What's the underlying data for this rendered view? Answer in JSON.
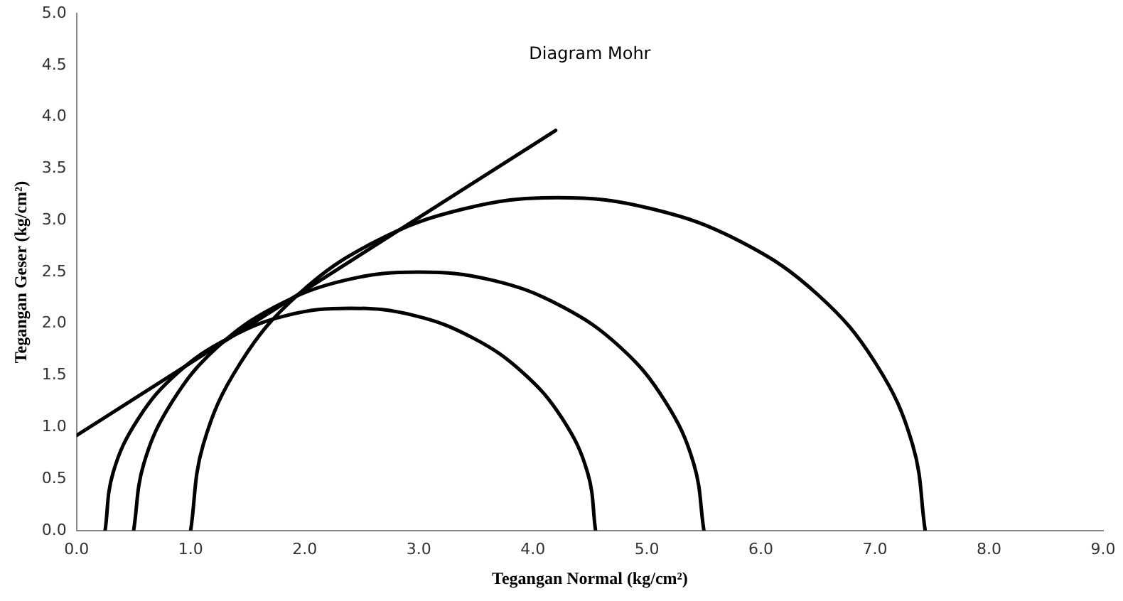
{
  "chart_data": {
    "type": "line",
    "title": "Diagram Mohr",
    "xlabel": "Tegangan Normal (kg/cm²)",
    "ylabel": "Tegangan Geser (kg/cm²)",
    "xlim": [
      0,
      9
    ],
    "ylim": [
      0,
      5
    ],
    "xticks": [
      {
        "value": 0,
        "label": "0.0"
      },
      {
        "value": 1,
        "label": "1.0"
      },
      {
        "value": 2,
        "label": "2.0"
      },
      {
        "value": 3,
        "label": "3.0"
      },
      {
        "value": 4,
        "label": "4.0"
      },
      {
        "value": 5,
        "label": "5.0"
      },
      {
        "value": 6,
        "label": "6.0"
      },
      {
        "value": 7,
        "label": "7.0"
      },
      {
        "value": 8,
        "label": "8.0"
      },
      {
        "value": 9,
        "label": "9.0"
      }
    ],
    "yticks": [
      {
        "value": 0,
        "label": "0.0"
      },
      {
        "value": 0.5,
        "label": "0.5"
      },
      {
        "value": 1,
        "label": "1.0"
      },
      {
        "value": 1.5,
        "label": "1.5"
      },
      {
        "value": 2,
        "label": "2.0"
      },
      {
        "value": 2.5,
        "label": "2.5"
      },
      {
        "value": 3,
        "label": "3.0"
      },
      {
        "value": 3.5,
        "label": "3.5"
      },
      {
        "value": 4,
        "label": "4.0"
      },
      {
        "value": 4.5,
        "label": "4.5"
      },
      {
        "value": 5,
        "label": "5.0"
      }
    ],
    "grid": false,
    "legend": false,
    "marker": "none",
    "line_style": "solid",
    "series": [
      {
        "color": "#000000",
        "x": [
          0.25,
          0.32,
          0.54,
          0.88,
          1.33,
          1.84,
          2.4,
          2.96,
          3.48,
          3.92,
          4.26,
          4.48,
          4.55
        ],
        "values": [
          0,
          0.56,
          1.08,
          1.52,
          1.86,
          2.08,
          2.15,
          2.08,
          1.86,
          1.52,
          1.08,
          0.56,
          0
        ]
      },
      {
        "color": "#000000",
        "x": [
          0.5,
          0.59,
          0.84,
          1.23,
          1.75,
          2.35,
          3.0,
          3.65,
          4.25,
          4.77,
          5.16,
          5.41,
          5.5
        ],
        "values": [
          0,
          0.65,
          1.25,
          1.77,
          2.17,
          2.42,
          2.5,
          2.42,
          2.17,
          1.77,
          1.25,
          0.65,
          0
        ]
      },
      {
        "color": "#000000",
        "x": [
          1.0,
          1.11,
          1.43,
          1.94,
          2.61,
          3.39,
          4.22,
          5.05,
          5.83,
          6.5,
          7.01,
          7.33,
          7.44
        ],
        "values": [
          0,
          0.83,
          1.61,
          2.28,
          2.79,
          3.11,
          3.22,
          3.11,
          2.79,
          2.28,
          1.61,
          0.83,
          0
        ]
      },
      {
        "color": "#000000",
        "x": [
          0,
          4.2
        ],
        "values": [
          0.92,
          3.87
        ]
      }
    ]
  }
}
